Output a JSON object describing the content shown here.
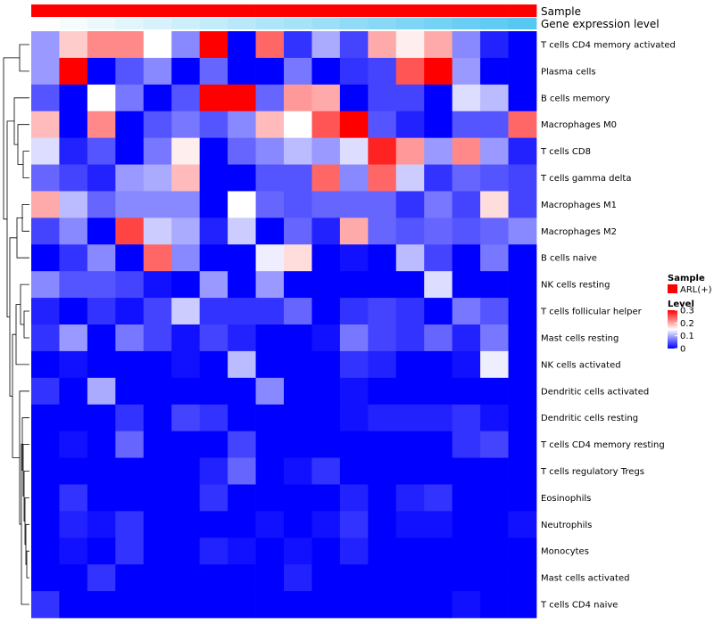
{
  "chart_data": {
    "type": "heatmap",
    "title": "",
    "columns_count": 18,
    "rows": [
      "T cells CD4 memory activated",
      "Plasma cells",
      "B cells memory",
      "Macrophages M0",
      "T cells CD8",
      "T cells gamma delta",
      "Macrophages M1",
      "Macrophages M2",
      "B cells naive",
      "NK cells resting",
      "T cells follicular helper",
      "Mast cells resting",
      "NK cells activated",
      "Dendritic cells activated",
      "Dendritic cells resting",
      "T cells CD4 memory resting",
      "T cells regulatory  Tregs",
      "Eosinophils",
      "Neutrophils",
      "Monocytes",
      "Mast cells activated",
      "T cells CD4 naive"
    ],
    "values": [
      [
        0.09,
        0.18,
        0.22,
        0.22,
        0.15,
        0.08,
        0.3,
        0.0,
        0.24,
        0.03,
        0.1,
        0.04,
        0.2,
        0.16,
        0.2,
        0.08,
        0.02,
        0.0
      ],
      [
        0.09,
        0.3,
        0.0,
        0.05,
        0.08,
        0.0,
        0.06,
        0.0,
        0.0,
        0.07,
        0.0,
        0.03,
        0.04,
        0.25,
        0.3,
        0.09,
        0.0,
        0.0
      ],
      [
        0.05,
        0.0,
        0.15,
        0.07,
        0.0,
        0.05,
        0.3,
        0.3,
        0.06,
        0.21,
        0.2,
        0.0,
        0.04,
        0.04,
        0.0,
        0.13,
        0.11,
        0.0
      ],
      [
        0.19,
        0.0,
        0.22,
        0.0,
        0.05,
        0.07,
        0.05,
        0.08,
        0.19,
        0.15,
        0.25,
        0.3,
        0.05,
        0.02,
        0.0,
        0.05,
        0.05,
        0.24
      ],
      [
        0.13,
        0.02,
        0.05,
        0.0,
        0.07,
        0.16,
        0.0,
        0.06,
        0.08,
        0.11,
        0.09,
        0.13,
        0.28,
        0.21,
        0.09,
        0.22,
        0.09,
        0.02
      ],
      [
        0.06,
        0.04,
        0.02,
        0.09,
        0.1,
        0.19,
        0.0,
        0.0,
        0.05,
        0.05,
        0.24,
        0.08,
        0.24,
        0.12,
        0.03,
        0.06,
        0.05,
        0.04
      ],
      [
        0.2,
        0.11,
        0.06,
        0.08,
        0.08,
        0.08,
        0.0,
        0.15,
        0.06,
        0.05,
        0.06,
        0.06,
        0.06,
        0.03,
        0.07,
        0.04,
        0.17,
        0.04
      ],
      [
        0.04,
        0.08,
        0.0,
        0.26,
        0.12,
        0.1,
        0.02,
        0.12,
        0.0,
        0.06,
        0.02,
        0.2,
        0.06,
        0.05,
        0.06,
        0.05,
        0.06,
        0.08
      ],
      [
        0.0,
        0.03,
        0.08,
        0.0,
        0.24,
        0.08,
        0.0,
        0.0,
        0.14,
        0.17,
        0.0,
        0.01,
        0.0,
        0.11,
        0.04,
        0.0,
        0.07,
        0.0
      ],
      [
        0.08,
        0.05,
        0.05,
        0.04,
        0.01,
        0.0,
        0.09,
        0.0,
        0.09,
        0.0,
        0.0,
        0.0,
        0.0,
        0.0,
        0.13,
        0.0,
        0.0,
        0.0
      ],
      [
        0.02,
        0.0,
        0.03,
        0.01,
        0.04,
        0.12,
        0.03,
        0.03,
        0.03,
        0.06,
        0.0,
        0.03,
        0.04,
        0.03,
        0.0,
        0.07,
        0.05,
        0.0
      ],
      [
        0.03,
        0.09,
        0.0,
        0.07,
        0.04,
        0.01,
        0.04,
        0.02,
        0.0,
        0.0,
        0.01,
        0.07,
        0.04,
        0.03,
        0.06,
        0.02,
        0.07,
        0.0
      ],
      [
        0.0,
        0.01,
        0.0,
        0.0,
        0.0,
        0.01,
        0.0,
        0.11,
        0.0,
        0.0,
        0.0,
        0.03,
        0.02,
        0.0,
        0.0,
        0.01,
        0.14,
        0.0
      ],
      [
        0.03,
        0.0,
        0.1,
        0.0,
        0.0,
        0.0,
        0.0,
        0.0,
        0.08,
        0.0,
        0.0,
        0.01,
        0.0,
        0.0,
        0.0,
        0.0,
        0.0,
        0.0
      ],
      [
        0.0,
        0.0,
        0.0,
        0.03,
        0.0,
        0.04,
        0.03,
        0.0,
        0.0,
        0.0,
        0.0,
        0.01,
        0.02,
        0.02,
        0.02,
        0.03,
        0.01,
        0.0
      ],
      [
        0.0,
        0.01,
        0.0,
        0.06,
        0.0,
        0.0,
        0.0,
        0.04,
        0.0,
        0.0,
        0.0,
        0.0,
        0.0,
        0.0,
        0.0,
        0.03,
        0.04,
        0.0
      ],
      [
        0.0,
        0.0,
        0.0,
        0.0,
        0.0,
        0.0,
        0.02,
        0.06,
        0.0,
        0.01,
        0.03,
        0.0,
        0.0,
        0.0,
        0.0,
        0.0,
        0.0,
        0.0
      ],
      [
        0.0,
        0.03,
        0.0,
        0.0,
        0.0,
        0.0,
        0.03,
        0.0,
        0.0,
        0.0,
        0.0,
        0.02,
        0.0,
        0.02,
        0.03,
        0.0,
        0.0,
        0.0
      ],
      [
        0.0,
        0.02,
        0.01,
        0.03,
        0.0,
        0.0,
        0.0,
        0.0,
        0.01,
        0.0,
        0.01,
        0.03,
        0.0,
        0.01,
        0.01,
        0.0,
        0.0,
        0.01
      ],
      [
        0.0,
        0.01,
        0.0,
        0.03,
        0.0,
        0.0,
        0.02,
        0.01,
        0.0,
        0.01,
        0.0,
        0.02,
        0.0,
        0.0,
        0.0,
        0.0,
        0.0,
        0.0
      ],
      [
        0.0,
        0.0,
        0.03,
        0.0,
        0.0,
        0.0,
        0.0,
        0.0,
        0.0,
        0.02,
        0.0,
        0.0,
        0.0,
        0.0,
        0.0,
        0.0,
        0.0,
        0.0
      ],
      [
        0.03,
        0.0,
        0.0,
        0.0,
        0.0,
        0.0,
        0.0,
        0.0,
        0.0,
        0.0,
        0.0,
        0.0,
        0.0,
        0.0,
        0.0,
        0.01,
        0.0,
        0.0
      ]
    ],
    "annotation_tracks": [
      {
        "name": "Sample",
        "type": "categorical",
        "colors": [
          "#ff0000"
        ]
      },
      {
        "name": "Gene expression level",
        "type": "gradient",
        "color_low": "#ffffff",
        "color_high": "#56c8f2"
      }
    ],
    "legends": {
      "sample": {
        "title": "Sample",
        "entry": "ARL(+)",
        "color": "#ff0000"
      },
      "level": {
        "title": "Level",
        "ticks": [
          "0.3",
          "0.2",
          "0.1",
          "0"
        ],
        "tick_values": [
          0.3,
          0.2,
          0.1,
          0
        ],
        "range": [
          0,
          0.3
        ],
        "low_color": "#0000ff",
        "mid_color": "#ffffff",
        "high_color": "#ff0000"
      }
    },
    "dendrogram": {
      "side": "left",
      "clustered": "rows"
    },
    "legend_position": "right"
  }
}
